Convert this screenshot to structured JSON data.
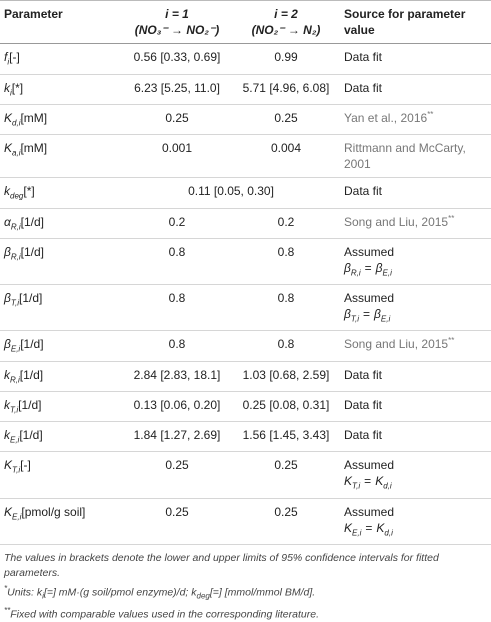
{
  "table": {
    "header": {
      "parameter": "Parameter",
      "i1": {
        "label": "i = 1",
        "reaction": "(NO₃⁻ → NO₂⁻)"
      },
      "i2": {
        "label": "i = 2",
        "reaction": "(NO₂⁻ → N₂)"
      },
      "source": "Source for parameter value"
    },
    "rows": [
      {
        "symbol": "f",
        "subscript": "i",
        "unit": "[-]",
        "i1": "0.56 [0.33, 0.69]",
        "i2": "0.99",
        "source": {
          "text": "Data fit"
        }
      },
      {
        "symbol": "k",
        "subscript": "i",
        "unit": "[*]",
        "i1": "6.23 [5.25, 11.0]",
        "i2": "5.71 [4.96, 6.08]",
        "source": {
          "text": "Data fit"
        }
      },
      {
        "symbol": "K",
        "subscript": "d,i",
        "unit": "[mM]",
        "i1": "0.25",
        "i2": "0.25",
        "source": {
          "text": "Yan et al., 2016",
          "note": "**",
          "cited": true
        }
      },
      {
        "symbol": "K",
        "subscript": "a,i",
        "unit": "[mM]",
        "i1": "0.001",
        "i2": "0.004",
        "source": {
          "text": "Rittmann and McCarty, 2001",
          "cited": true
        }
      },
      {
        "symbol": "k",
        "subscript": "deg",
        "unit": "[*]",
        "both": "0.11 [0.05, 0.30]",
        "source": {
          "text": "Data fit"
        }
      },
      {
        "symbol": "α",
        "subscript": "R,i",
        "unit": "[1/d]",
        "i1": "0.2",
        "i2": "0.2",
        "source": {
          "text": "Song and Liu, 2015",
          "note": "**",
          "cited": true
        }
      },
      {
        "symbol": "β",
        "subscript": "R,i",
        "unit": "[1/d]",
        "i1": "0.8",
        "i2": "0.8",
        "source": {
          "text": "Assumed",
          "eq": {
            "lhs": {
              "symbol": "β",
              "subscript": "R,i"
            },
            "relation": "=",
            "rhs": {
              "symbol": "β",
              "subscript": "E,i"
            }
          }
        }
      },
      {
        "symbol": "β",
        "subscript": "T,i",
        "unit": "[1/d]",
        "i1": "0.8",
        "i2": "0.8",
        "source": {
          "text": "Assumed",
          "eq": {
            "lhs": {
              "symbol": "β",
              "subscript": "T,i"
            },
            "relation": "=",
            "rhs": {
              "symbol": "β",
              "subscript": "E,i"
            }
          }
        }
      },
      {
        "symbol": "β",
        "subscript": "E,i",
        "unit": "[1/d]",
        "i1": "0.8",
        "i2": "0.8",
        "source": {
          "text": "Song and Liu, 2015",
          "note": "**",
          "cited": true
        }
      },
      {
        "symbol": "k",
        "subscript": "R,i",
        "unit": "[1/d]",
        "i1": "2.84 [2.83, 18.1]",
        "i2": "1.03 [0.68, 2.59]",
        "source": {
          "text": "Data fit"
        }
      },
      {
        "symbol": "k",
        "subscript": "T,i",
        "unit": "[1/d]",
        "i1": "0.13 [0.06, 0.20]",
        "i2": "0.25 [0.08, 0.31]",
        "source": {
          "text": "Data fit"
        }
      },
      {
        "symbol": "k",
        "subscript": "E,i",
        "unit": "[1/d]",
        "i1": "1.84 [1.27, 2.69]",
        "i2": "1.56 [1.45, 3.43]",
        "source": {
          "text": "Data fit"
        }
      },
      {
        "symbol": "K",
        "subscript": "T,i",
        "unit": "[-]",
        "i1": "0.25",
        "i2": "0.25",
        "source": {
          "text": "Assumed",
          "eq": {
            "lhs": {
              "symbol": "K",
              "subscript": "T,i"
            },
            "relation": "=",
            "rhs": {
              "symbol": "K",
              "subscript": "d,i"
            }
          }
        }
      },
      {
        "symbol": "K",
        "subscript": "E,i",
        "unit": "[pmol/g soil]",
        "i1": "0.25",
        "i2": "0.25",
        "source": {
          "text": "Assumed",
          "eq": {
            "lhs": {
              "symbol": "K",
              "subscript": "E,i"
            },
            "relation": "=",
            "rhs": {
              "symbol": "K",
              "subscript": "d,i"
            }
          }
        }
      }
    ]
  },
  "footnotes": [
    [
      {
        "text": "The values in brackets denote the lower and upper limits of 95% confidence intervals for fitted parameters."
      }
    ],
    [
      {
        "sup": "*"
      },
      {
        "text": "Units: k"
      },
      {
        "sub": "i"
      },
      {
        "text": "[=] mM·(g soil/pmol enzyme)/d; k"
      },
      {
        "sub": "deg"
      },
      {
        "text": "[=] [mmol/mmol BM/d]."
      }
    ],
    [
      {
        "sup": "**"
      },
      {
        "text": "Fixed with comparable values used in the corresponding literature."
      }
    ]
  ]
}
